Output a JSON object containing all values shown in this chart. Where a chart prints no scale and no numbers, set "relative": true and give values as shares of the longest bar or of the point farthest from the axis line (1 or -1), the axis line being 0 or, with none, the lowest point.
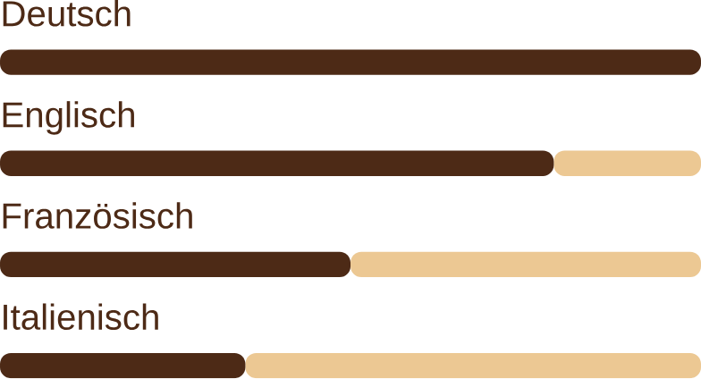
{
  "chart_data": {
    "type": "bar",
    "orientation": "horizontal",
    "stacked": true,
    "relative": true,
    "categories": [
      "Deutsch",
      "Englisch",
      "Französisch",
      "Italienisch"
    ],
    "series": [
      {
        "color": "#4d2a16",
        "values": [
          1,
          0.79,
          0.5,
          0.35
        ]
      },
      {
        "color": "#ecc893",
        "values": [
          0,
          0.21,
          0.5,
          0.65
        ]
      }
    ]
  }
}
